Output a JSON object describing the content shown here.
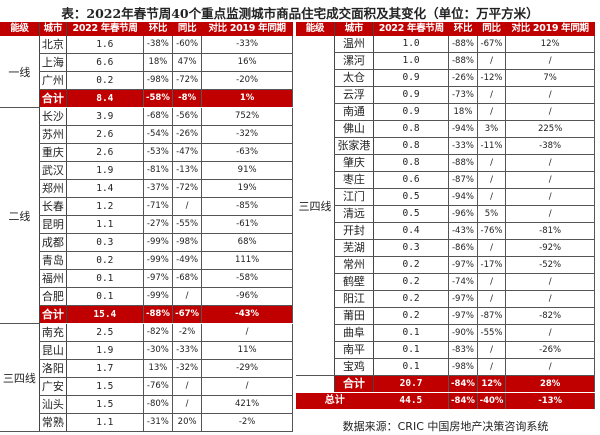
{
  "title": "表：2022年春节周40个重点监测城市商品住宅成交面积及其变化（单位：万平方米）",
  "headers": [
    "能级",
    "城市",
    "2022 年春节周",
    "环比",
    "同比",
    "对比 2019 年同期"
  ],
  "colors": {
    "accent": "#c00000"
  },
  "left": [
    {
      "tier": "一线",
      "rows": [
        [
          "北京",
          "1.6",
          "-38%",
          "-60%",
          "-33%"
        ],
        [
          "上海",
          "6.6",
          "18%",
          "47%",
          "16%"
        ],
        [
          "广州",
          "0.2",
          "-98%",
          "-72%",
          "-20%"
        ]
      ],
      "total": [
        "合计",
        "8.4",
        "-58%",
        "-8%",
        "1%"
      ]
    },
    {
      "tier": "二线",
      "rows": [
        [
          "长沙",
          "3.9",
          "-68%",
          "-56%",
          "752%"
        ],
        [
          "苏州",
          "2.6",
          "-54%",
          "-26%",
          "-32%"
        ],
        [
          "重庆",
          "2.6",
          "-53%",
          "-47%",
          "-63%"
        ],
        [
          "武汉",
          "1.9",
          "-81%",
          "-13%",
          "91%"
        ],
        [
          "郑州",
          "1.4",
          "-37%",
          "-72%",
          "19%"
        ],
        [
          "长春",
          "1.2",
          "-71%",
          "/",
          "-85%"
        ],
        [
          "昆明",
          "1.1",
          "-27%",
          "-55%",
          "-61%"
        ],
        [
          "成都",
          "0.3",
          "-99%",
          "-98%",
          "68%"
        ],
        [
          "青岛",
          "0.2",
          "-99%",
          "-49%",
          "111%"
        ],
        [
          "福州",
          "0.1",
          "-97%",
          "-68%",
          "-58%"
        ],
        [
          "合肥",
          "0.1",
          "-99%",
          "/",
          "-96%"
        ]
      ],
      "total": [
        "合计",
        "15.4",
        "-88%",
        "-67%",
        "-43%"
      ]
    },
    {
      "tier": "三四线",
      "rows": [
        [
          "南充",
          "2.5",
          "-82%",
          "-2%",
          "/"
        ],
        [
          "昆山",
          "1.9",
          "-30%",
          "-33%",
          "11%"
        ],
        [
          "洛阳",
          "1.7",
          "13%",
          "-32%",
          "-29%"
        ],
        [
          "广安",
          "1.5",
          "-76%",
          "/",
          "/"
        ],
        [
          "汕头",
          "1.5",
          "-80%",
          "/",
          "421%"
        ],
        [
          "常熟",
          "1.1",
          "-31%",
          "20%",
          "-2%"
        ]
      ]
    }
  ],
  "right": [
    {
      "tier": "三四线",
      "rows": [
        [
          "温州",
          "1.0",
          "-88%",
          "-67%",
          "12%"
        ],
        [
          "漯河",
          "1.0",
          "-88%",
          "/",
          "/"
        ],
        [
          "太仓",
          "0.9",
          "-26%",
          "-12%",
          "7%"
        ],
        [
          "云浮",
          "0.9",
          "-73%",
          "/",
          "/"
        ],
        [
          "南通",
          "0.9",
          "18%",
          "/",
          "/"
        ],
        [
          "佛山",
          "0.8",
          "-94%",
          "3%",
          "225%"
        ],
        [
          "张家港",
          "0.8",
          "-33%",
          "-11%",
          "-38%"
        ],
        [
          "肇庆",
          "0.8",
          "-88%",
          "/",
          "/"
        ],
        [
          "枣庄",
          "0.6",
          "-87%",
          "/",
          "/"
        ],
        [
          "江门",
          "0.5",
          "-94%",
          "/",
          "/"
        ],
        [
          "清远",
          "0.5",
          "-96%",
          "5%",
          "/"
        ],
        [
          "开封",
          "0.4",
          "-43%",
          "-76%",
          "-81%"
        ],
        [
          "芜湖",
          "0.3",
          "-86%",
          "/",
          "-92%"
        ],
        [
          "常州",
          "0.2",
          "-97%",
          "-17%",
          "-52%"
        ],
        [
          "鹤壁",
          "0.2",
          "-74%",
          "/",
          "/"
        ],
        [
          "阳江",
          "0.2",
          "-97%",
          "/",
          "/"
        ],
        [
          "莆田",
          "0.2",
          "-97%",
          "-87%",
          "-82%"
        ],
        [
          "曲阜",
          "0.1",
          "-90%",
          "-55%",
          "/"
        ],
        [
          "南平",
          "0.1",
          "-83%",
          "/",
          "-26%"
        ],
        [
          "宝鸡",
          "0.1",
          "-98%",
          "/",
          "/"
        ]
      ],
      "total": [
        "合计",
        "20.7",
        "-84%",
        "12%",
        "28%"
      ]
    }
  ],
  "grand_total": [
    "总计",
    "44.5",
    "-84%",
    "-40%",
    "-13%"
  ],
  "source": "数据来源：CRIC 中国房地产决策咨询系统"
}
